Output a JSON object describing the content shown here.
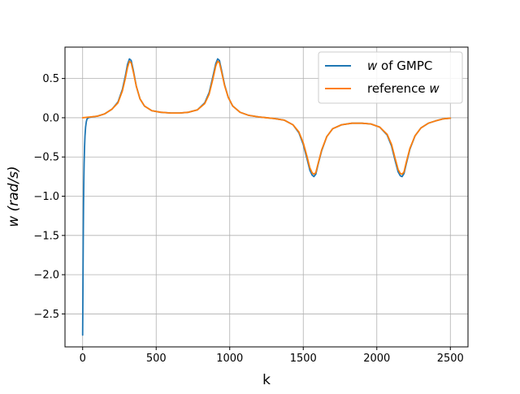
{
  "chart_data": {
    "type": "line",
    "title": "",
    "xlabel": "k",
    "ylabel_base": "w",
    "ylabel_unit": "(rad/s)",
    "xlim": [
      -120,
      2620
    ],
    "ylim": [
      -2.92,
      0.9
    ],
    "xticks": [
      0,
      500,
      1000,
      1500,
      2000,
      2500
    ],
    "xtick_labels": [
      "0",
      "500",
      "1000",
      "1500",
      "2000",
      "2500"
    ],
    "yticks": [
      0.5,
      0.0,
      -0.5,
      -1.0,
      -1.5,
      -2.0,
      -2.5
    ],
    "ytick_labels": [
      "0.5",
      "0.0",
      "−0.5",
      "−1.0",
      "−1.5",
      "−2.0",
      "−2.5"
    ],
    "grid": true,
    "legend_position": "top-right",
    "series": [
      {
        "name": "GMPC",
        "legend_prefix": "w",
        "legend_suffix": " of GMPC",
        "color": "#1f77b4",
        "points": [
          [
            0,
            -2.77
          ],
          [
            2,
            -2.2
          ],
          [
            4,
            -1.55
          ],
          [
            6,
            -1.1
          ],
          [
            8,
            -0.8
          ],
          [
            10,
            -0.58
          ],
          [
            13,
            -0.37
          ],
          [
            16,
            -0.23
          ],
          [
            20,
            -0.12
          ],
          [
            25,
            -0.05
          ],
          [
            30,
            -0.015
          ],
          [
            40,
            0.0
          ],
          [
            60,
            0.01
          ],
          [
            100,
            0.02
          ],
          [
            150,
            0.05
          ],
          [
            200,
            0.11
          ],
          [
            240,
            0.2
          ],
          [
            270,
            0.36
          ],
          [
            290,
            0.53
          ],
          [
            305,
            0.68
          ],
          [
            318,
            0.75
          ],
          [
            330,
            0.73
          ],
          [
            345,
            0.6
          ],
          [
            365,
            0.4
          ],
          [
            390,
            0.24
          ],
          [
            420,
            0.15
          ],
          [
            470,
            0.09
          ],
          [
            530,
            0.07
          ],
          [
            600,
            0.06
          ],
          [
            660,
            0.06
          ],
          [
            720,
            0.07
          ],
          [
            780,
            0.1
          ],
          [
            830,
            0.19
          ],
          [
            860,
            0.32
          ],
          [
            885,
            0.52
          ],
          [
            905,
            0.69
          ],
          [
            918,
            0.75
          ],
          [
            930,
            0.73
          ],
          [
            945,
            0.6
          ],
          [
            965,
            0.42
          ],
          [
            990,
            0.26
          ],
          [
            1020,
            0.15
          ],
          [
            1070,
            0.07
          ],
          [
            1130,
            0.03
          ],
          [
            1200,
            0.01
          ],
          [
            1250,
            0.0
          ],
          [
            1300,
            -0.01
          ],
          [
            1370,
            -0.03
          ],
          [
            1430,
            -0.09
          ],
          [
            1470,
            -0.19
          ],
          [
            1500,
            -0.34
          ],
          [
            1525,
            -0.52
          ],
          [
            1545,
            -0.67
          ],
          [
            1560,
            -0.73
          ],
          [
            1572,
            -0.75
          ],
          [
            1585,
            -0.72
          ],
          [
            1600,
            -0.6
          ],
          [
            1625,
            -0.42
          ],
          [
            1660,
            -0.24
          ],
          [
            1700,
            -0.14
          ],
          [
            1760,
            -0.09
          ],
          [
            1830,
            -0.07
          ],
          [
            1900,
            -0.07
          ],
          [
            1960,
            -0.08
          ],
          [
            2020,
            -0.12
          ],
          [
            2070,
            -0.22
          ],
          [
            2100,
            -0.36
          ],
          [
            2125,
            -0.55
          ],
          [
            2145,
            -0.69
          ],
          [
            2160,
            -0.74
          ],
          [
            2172,
            -0.75
          ],
          [
            2185,
            -0.71
          ],
          [
            2200,
            -0.59
          ],
          [
            2225,
            -0.4
          ],
          [
            2260,
            -0.23
          ],
          [
            2300,
            -0.13
          ],
          [
            2350,
            -0.07
          ],
          [
            2400,
            -0.04
          ],
          [
            2450,
            -0.015
          ],
          [
            2500,
            -0.005
          ]
        ]
      },
      {
        "name": "reference",
        "legend_prefix": "reference ",
        "legend_suffix": "w",
        "color": "#ff7f0e",
        "points": [
          [
            0,
            0.0
          ],
          [
            50,
            0.01
          ],
          [
            100,
            0.02
          ],
          [
            150,
            0.05
          ],
          [
            200,
            0.11
          ],
          [
            240,
            0.19
          ],
          [
            270,
            0.34
          ],
          [
            290,
            0.5
          ],
          [
            305,
            0.64
          ],
          [
            318,
            0.72
          ],
          [
            330,
            0.7
          ],
          [
            345,
            0.58
          ],
          [
            365,
            0.4
          ],
          [
            390,
            0.24
          ],
          [
            420,
            0.15
          ],
          [
            470,
            0.09
          ],
          [
            530,
            0.07
          ],
          [
            600,
            0.06
          ],
          [
            660,
            0.06
          ],
          [
            720,
            0.07
          ],
          [
            780,
            0.1
          ],
          [
            830,
            0.18
          ],
          [
            860,
            0.3
          ],
          [
            885,
            0.49
          ],
          [
            905,
            0.66
          ],
          [
            918,
            0.72
          ],
          [
            930,
            0.7
          ],
          [
            945,
            0.58
          ],
          [
            965,
            0.41
          ],
          [
            990,
            0.26
          ],
          [
            1020,
            0.15
          ],
          [
            1070,
            0.07
          ],
          [
            1130,
            0.03
          ],
          [
            1200,
            0.01
          ],
          [
            1250,
            0.0
          ],
          [
            1300,
            -0.01
          ],
          [
            1370,
            -0.03
          ],
          [
            1430,
            -0.09
          ],
          [
            1470,
            -0.18
          ],
          [
            1500,
            -0.32
          ],
          [
            1525,
            -0.49
          ],
          [
            1545,
            -0.64
          ],
          [
            1560,
            -0.7
          ],
          [
            1572,
            -0.72
          ],
          [
            1585,
            -0.7
          ],
          [
            1600,
            -0.59
          ],
          [
            1625,
            -0.41
          ],
          [
            1660,
            -0.24
          ],
          [
            1700,
            -0.14
          ],
          [
            1760,
            -0.09
          ],
          [
            1830,
            -0.07
          ],
          [
            1900,
            -0.07
          ],
          [
            1960,
            -0.08
          ],
          [
            2020,
            -0.12
          ],
          [
            2070,
            -0.21
          ],
          [
            2100,
            -0.34
          ],
          [
            2125,
            -0.52
          ],
          [
            2145,
            -0.66
          ],
          [
            2160,
            -0.71
          ],
          [
            2172,
            -0.72
          ],
          [
            2185,
            -0.69
          ],
          [
            2200,
            -0.57
          ],
          [
            2225,
            -0.39
          ],
          [
            2260,
            -0.23
          ],
          [
            2300,
            -0.13
          ],
          [
            2350,
            -0.07
          ],
          [
            2400,
            -0.04
          ],
          [
            2450,
            -0.015
          ],
          [
            2500,
            -0.005
          ]
        ]
      }
    ]
  }
}
